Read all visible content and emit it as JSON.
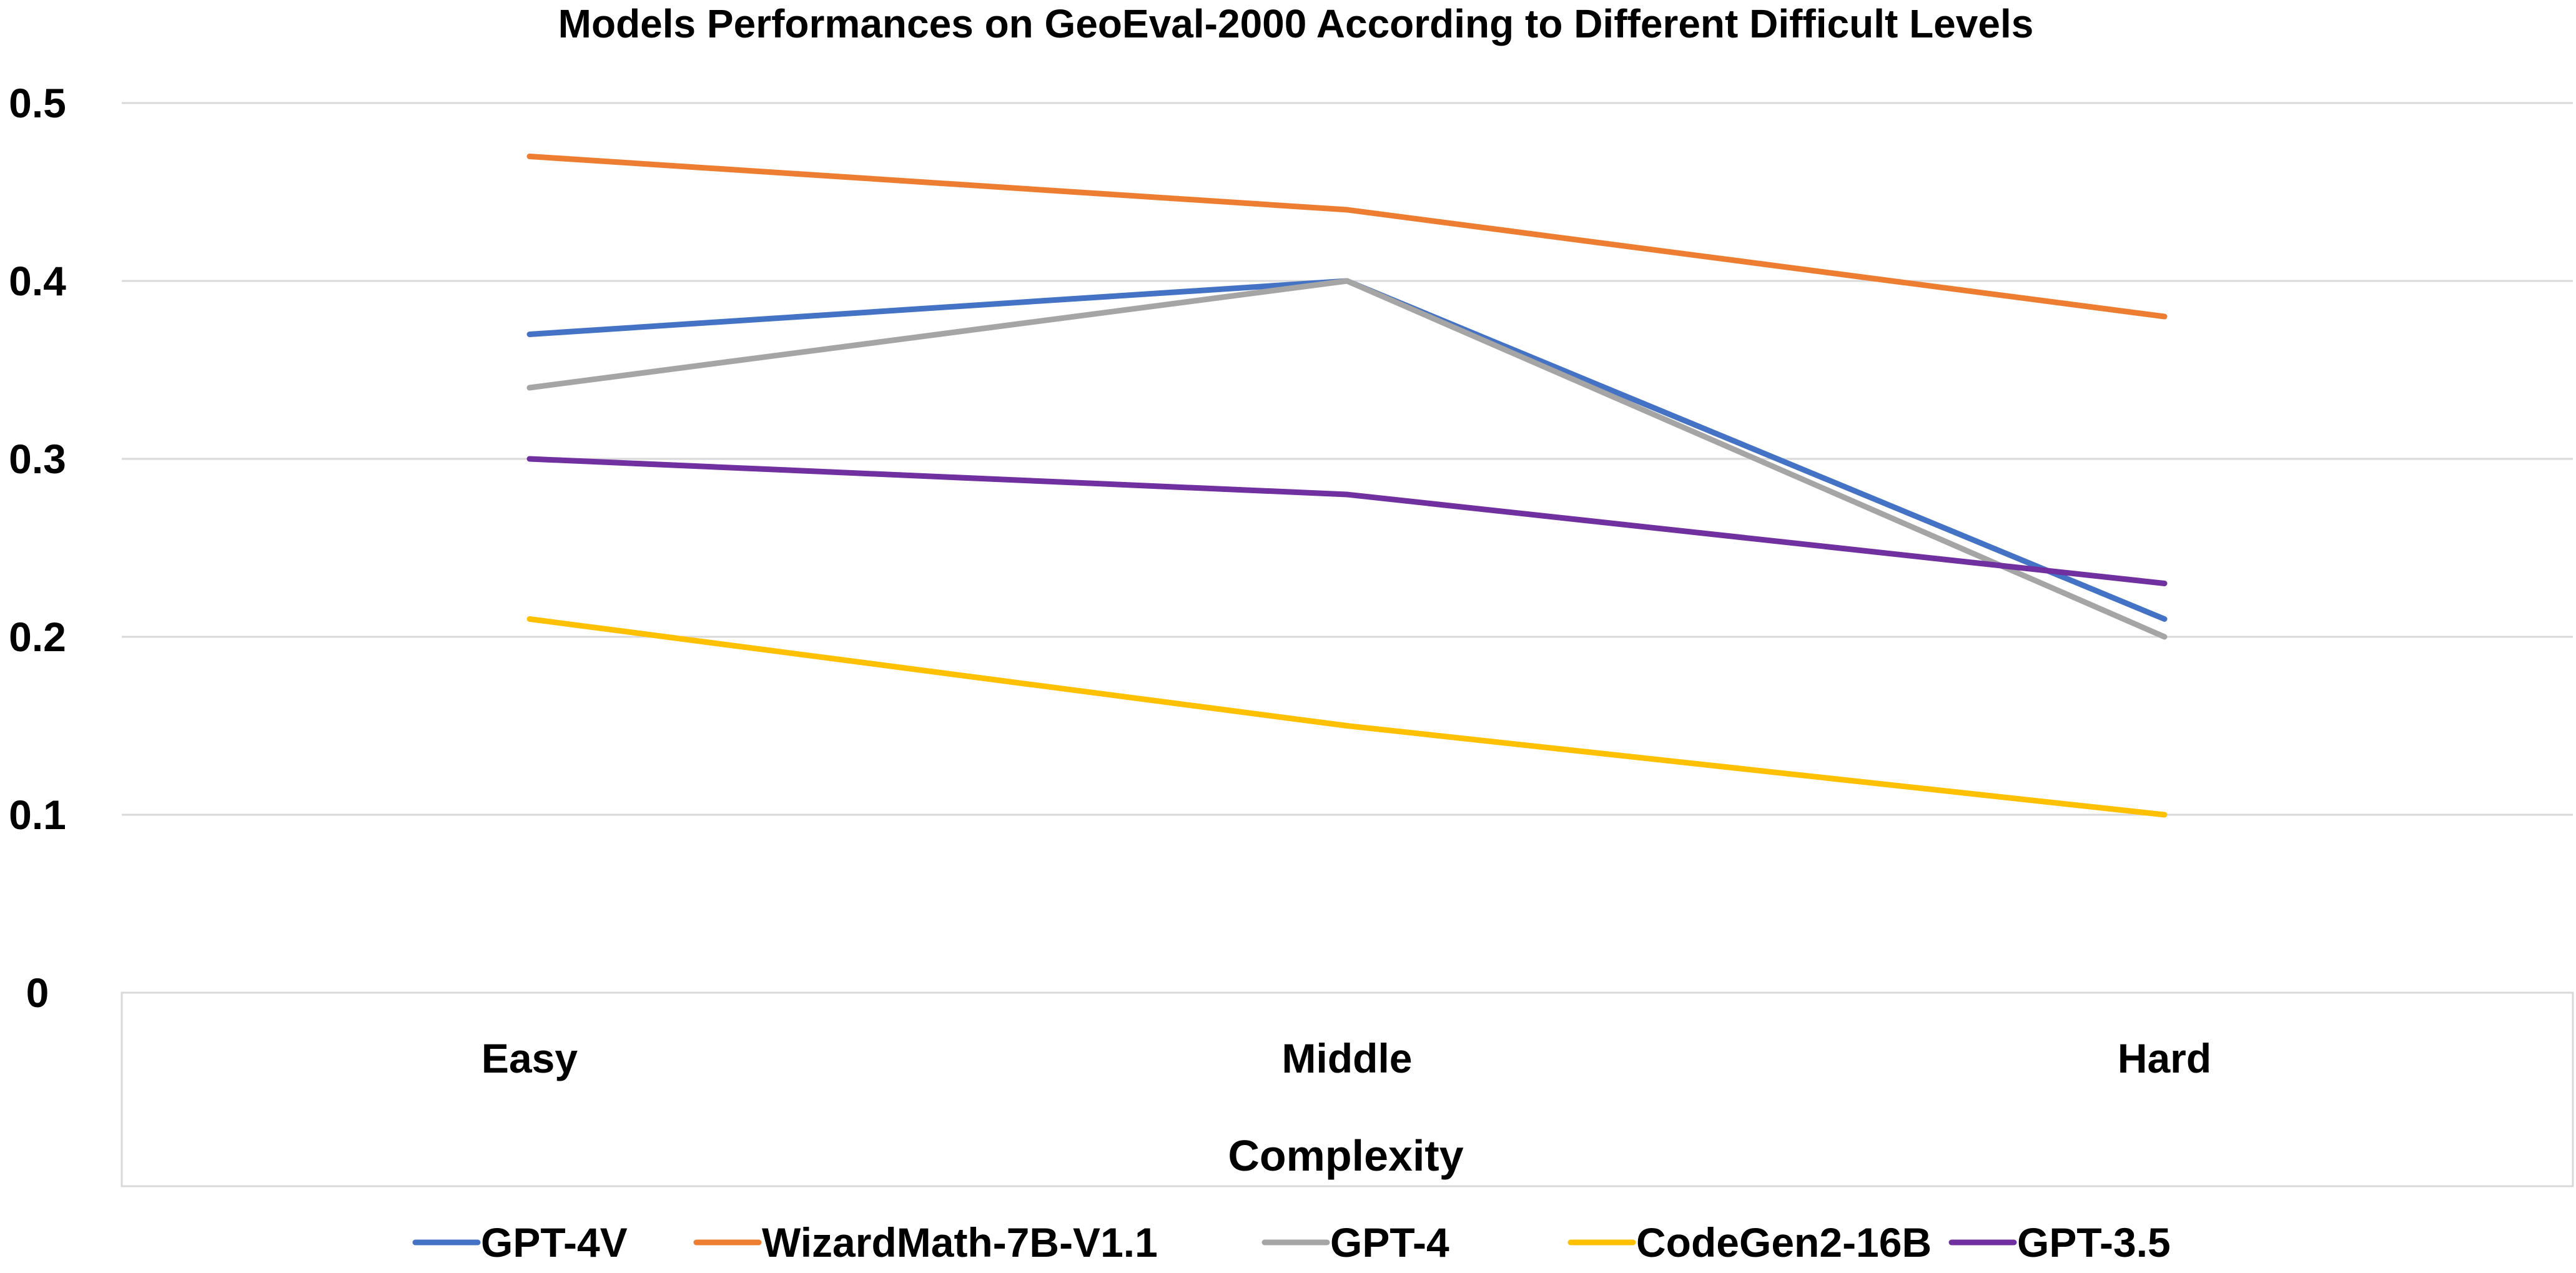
{
  "chart_data": {
    "type": "line",
    "title": "Models Performances on GeoEval-2000 According to Different Difficult Levels",
    "xlabel": "Complexity",
    "ylabel": "",
    "categories": [
      "Easy",
      "Middle",
      "Hard"
    ],
    "ylim": [
      0,
      0.5
    ],
    "yticks": [
      0,
      0.1,
      0.2,
      0.3,
      0.4,
      0.5
    ],
    "ytick_labels": [
      "0",
      "0.1",
      "0.2",
      "0.3",
      "0.4",
      "0.5"
    ],
    "grid": true,
    "legend_position": "bottom",
    "series": [
      {
        "name": "GPT-4V",
        "values": [
          0.37,
          0.4,
          0.21
        ],
        "color": "#4472c4"
      },
      {
        "name": "WizardMath-7B-V1.1",
        "values": [
          0.47,
          0.44,
          0.38
        ],
        "color": "#ed7d31"
      },
      {
        "name": "GPT-4",
        "values": [
          0.34,
          0.4,
          0.2
        ],
        "color": "#a5a5a5"
      },
      {
        "name": "CodeGen2-16B",
        "values": [
          0.21,
          0.15,
          0.1
        ],
        "color": "#ffc000"
      },
      {
        "name": "GPT-3.5",
        "values": [
          0.3,
          0.28,
          0.23
        ],
        "color": "#7030a0"
      }
    ]
  }
}
